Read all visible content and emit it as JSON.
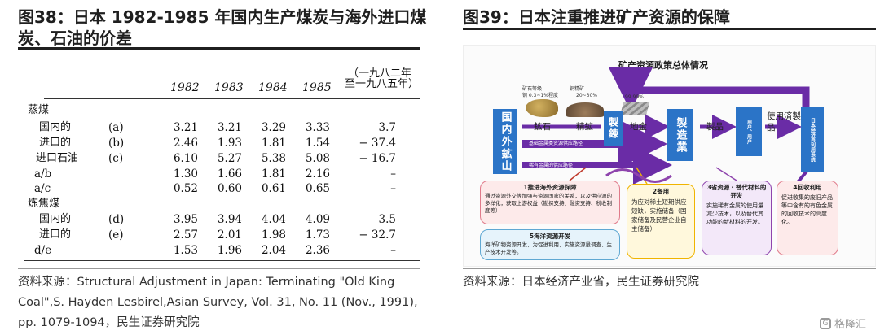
{
  "left": {
    "title_line1": "图38：日本 1982-1985 年国内生产煤炭与海外进口煤",
    "title_line2": "炭、石油的价差",
    "source_line1": "资料来源：Structural  Adjustment  in  Japan:  Terminating  \"Old  King",
    "source_line2": "Coal\",S. Hayden Lesbirel,Asian Survey, Vol. 31, No. 11 (Nov., 1991),",
    "source_line3": "pp. 1079-1094，民生证券研究院",
    "table": {
      "years": [
        "1982",
        "1983",
        "1984",
        "1985"
      ],
      "change_header": "（一九八二年至一九八五年）",
      "rows": [
        {
          "label": "蒸煤",
          "key": "",
          "values": [
            "",
            "",
            "",
            ""
          ],
          "change": ""
        },
        {
          "label": "国内的",
          "key": "(a)",
          "values": [
            "3.21",
            "3.21",
            "3.29",
            "3.33"
          ],
          "change": "3.7"
        },
        {
          "label": "进口的",
          "key": "(b)",
          "values": [
            "2.46",
            "1.93",
            "1.81",
            "1.54"
          ],
          "change": "− 37.4"
        },
        {
          "label": "进口石油",
          "key": "(c)",
          "values": [
            "6.10",
            "5.27",
            "5.38",
            "5.08"
          ],
          "change": "− 16.7"
        },
        {
          "label": "a/b",
          "key": "",
          "values": [
            "1.30",
            "1.66",
            "1.81",
            "2.16"
          ],
          "change": "–"
        },
        {
          "label": "a/c",
          "key": "",
          "values": [
            "0.52",
            "0.60",
            "0.61",
            "0.65"
          ],
          "change": "–"
        },
        {
          "label": "炼焦煤",
          "key": "",
          "values": [
            "",
            "",
            "",
            ""
          ],
          "change": ""
        },
        {
          "label": "国内的",
          "key": "(d)",
          "values": [
            "3.95",
            "3.94",
            "4.04",
            "4.09"
          ],
          "change": "3.5"
        },
        {
          "label": "进口的",
          "key": "(e)",
          "values": [
            "2.57",
            "2.01",
            "1.98",
            "1.73"
          ],
          "change": "− 32.7"
        },
        {
          "label": "d/e",
          "key": "",
          "values": [
            "1.53",
            "1.96",
            "2.04",
            "2.36"
          ],
          "change": "–"
        }
      ]
    }
  },
  "right": {
    "title": "图39：日本注重推进矿产资源的保障",
    "source": "资料来源：日本经济产业省，民生证券研究院",
    "diagram": {
      "heading": "矿产资源政策总体情况",
      "ore_grade_label": "矿石等级：",
      "ore_grade_value": "铜 0.3~1%程度",
      "refined_grade_label": "铜精矿",
      "refined_grade_value": "20~30%",
      "metal_grade_value": "99.99%",
      "box_domestic_overseas_mine": "国内外鉱山",
      "label_ore": "鉱石",
      "label_concentrate": "精鉱",
      "box_smelting": "製錬",
      "label_bullion": "地金",
      "box_manufacturing": "製造業",
      "label_product": "製品",
      "label_used_product": "使用済製品",
      "box_users": "用户、用户",
      "box_japan_economy": "日本经济再利用系统",
      "arrow_base_metal": "基础金属类资源供应路径",
      "arrow_rare_metal": "稀有金属的供应路径",
      "card1_title": "1推进海外资源保障",
      "card1_body": "通过资源外交等加强与资源国家的关系，以及供应源的多样化，获取上游权益（勘探支持、融资支持、税收制度等）",
      "card5_title": "5海洋资源开发",
      "card5_body": "海洋矿物资源开发，为促进利用，实施资源量调查、生产技术开发等。",
      "card2_title": "2备用",
      "card2_body": "为应对稀土短期供应短缺，实施储备（国家储备及民营企业自主储备）",
      "card3_title": "3省资源・替代材料的开发",
      "card3_body": "实施稀有金属的使用量减少技术，以及替代其功能的新材料的开发。",
      "card4_title": "4回收利用",
      "card4_body": "促进收集的废旧产品等中含有的有色金属的回收技术的高度化。"
    }
  },
  "watermark": "格隆汇"
}
